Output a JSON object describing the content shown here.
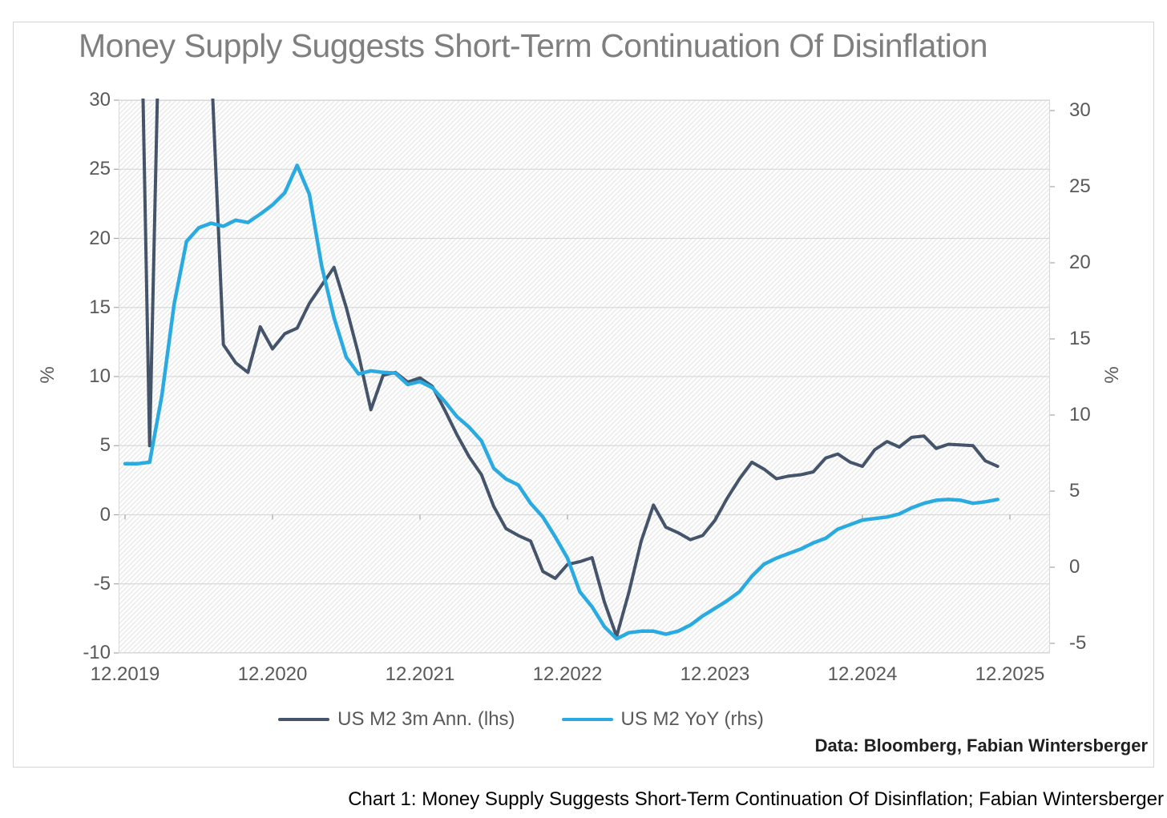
{
  "chart": {
    "title": "Money Supply Suggests Short-Term Continuation Of Disinflation",
    "credit": "Data: Bloomberg, Fabian Wintersberger",
    "caption": "Chart 1: Money Supply Suggests Short-Term Continuation Of Disinflation; Fabian Wintersberger",
    "legend": [
      {
        "label": "US M2 3m Ann. (lhs)",
        "color": "#44546a"
      },
      {
        "label": "US M2 YoY (rhs)",
        "color": "#29abe2"
      }
    ]
  },
  "chart_data": {
    "type": "line",
    "title": "Money Supply Suggests Short-Term Continuation Of Disinflation",
    "x_start_month": "2019-12",
    "x_frequency": "monthly",
    "x_tick_labels": [
      "12.2019",
      "12.2020",
      "12.2021",
      "12.2022",
      "12.2023",
      "12.2024",
      "12.2025"
    ],
    "left_axis": {
      "label": "%",
      "ticks": [
        30,
        25,
        20,
        15,
        10,
        5,
        0,
        -5,
        -10
      ],
      "ylim": [
        -10,
        30
      ]
    },
    "right_axis": {
      "label": "%",
      "ticks": [
        30,
        25,
        20,
        15,
        10,
        5,
        0,
        -5
      ],
      "ylim": [
        -5,
        30
      ]
    },
    "grid": true,
    "legend_position": "bottom",
    "plot_background": "diagonal-hatch",
    "series": [
      {
        "name": "US M2 3m Ann. (lhs)",
        "axis": "left",
        "color": "#44546a",
        "values": [
          38,
          52,
          5.0,
          45,
          70,
          64,
          44,
          33,
          12.3,
          11.0,
          10.3,
          13.6,
          12.0,
          13.1,
          13.5,
          15.3,
          16.6,
          17.9,
          15.0,
          11.6,
          7.6,
          10.1,
          10.3,
          9.6,
          9.9,
          9.3,
          7.6,
          5.8,
          4.2,
          2.9,
          0.6,
          -1.0,
          -1.5,
          -1.9,
          -4.1,
          -4.6,
          -3.6,
          -3.4,
          -3.1,
          -6.3,
          -8.8,
          -5.6,
          -1.9,
          0.7,
          -0.9,
          -1.3,
          -1.8,
          -1.5,
          -0.4,
          1.2,
          2.6,
          3.8,
          3.3,
          2.6,
          2.8,
          2.9,
          3.1,
          4.1,
          4.4,
          3.8,
          3.5,
          4.7,
          5.3,
          4.9,
          5.6,
          5.7,
          4.8,
          5.1,
          5.05,
          5.0,
          3.9,
          3.5
        ]
      },
      {
        "name": "US M2 YoY (rhs)",
        "axis": "right",
        "color": "#29abe2",
        "values": [
          6.8,
          6.8,
          6.9,
          11.3,
          17.3,
          21.4,
          22.3,
          22.6,
          22.4,
          22.8,
          22.65,
          23.2,
          23.8,
          24.6,
          26.4,
          24.5,
          19.8,
          16.4,
          13.8,
          12.7,
          12.9,
          12.8,
          12.75,
          12.0,
          12.2,
          11.8,
          10.9,
          9.9,
          9.2,
          8.3,
          6.5,
          5.8,
          5.4,
          4.2,
          3.3,
          2.0,
          0.6,
          -1.6,
          -2.6,
          -3.9,
          -4.7,
          -4.3,
          -4.2,
          -4.2,
          -4.4,
          -4.2,
          -3.8,
          -3.2,
          -2.7,
          -2.2,
          -1.6,
          -0.6,
          0.2,
          0.6,
          0.9,
          1.2,
          1.6,
          1.9,
          2.5,
          2.8,
          3.1,
          3.2,
          3.3,
          3.5,
          3.9,
          4.2,
          4.4,
          4.45,
          4.4,
          4.2,
          4.3,
          4.45
        ]
      }
    ]
  },
  "colors": {
    "grid": "#d9d9d9",
    "hatch": "#ececec",
    "frame": "#d4d4d4",
    "axis_text": "#595959",
    "title_text": "#7f7f7f",
    "tick_mark": "#a6a6a6"
  }
}
